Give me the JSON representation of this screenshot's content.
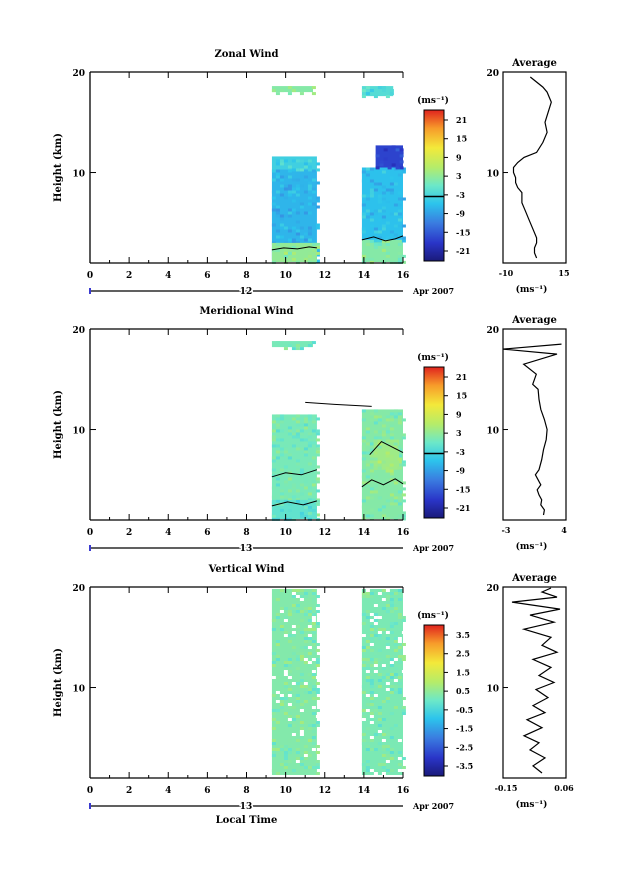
{
  "chart_data": [
    {
      "type": "heatmap",
      "title": "Zonal Wind",
      "ylabel": "Height (km)",
      "xlabel": "",
      "xlim": [
        0,
        16
      ],
      "ylim": [
        1,
        20
      ],
      "xticks": [
        "0",
        "2",
        "4",
        "6",
        "8",
        "10",
        "12",
        "14",
        "16"
      ],
      "yticks": [
        "10",
        "20"
      ],
      "date_label": "12",
      "date_suffix": "Apr 2007",
      "colorbar": {
        "unit": "(ms⁻¹)",
        "ticks": [
          "21",
          "15",
          "9",
          "3",
          "-3",
          "-9",
          "-15",
          "-21"
        ],
        "range": [
          -24,
          24
        ],
        "zero_line": true
      },
      "data_blocks": [
        {
          "t": [
            9.3,
            11.6
          ],
          "h": [
            1.1,
            10.3
          ],
          "value": -7
        },
        {
          "t": [
            9.3,
            11.6
          ],
          "h": [
            1.1,
            3.0
          ],
          "value": 3
        },
        {
          "t": [
            9.3,
            11.6
          ],
          "h": [
            10.3,
            11.6
          ],
          "value": -4
        },
        {
          "t": [
            13.9,
            16.0
          ],
          "h": [
            1.1,
            3.3
          ],
          "value": 2
        },
        {
          "t": [
            13.9,
            16.0
          ],
          "h": [
            3.3,
            10.5
          ],
          "value": -6
        },
        {
          "t": [
            14.6,
            16.0
          ],
          "h": [
            10.5,
            12.7
          ],
          "value": -17
        },
        {
          "t": [
            9.3,
            11.4
          ],
          "h": [
            18.0,
            18.6
          ],
          "value": 2
        },
        {
          "t": [
            13.9,
            15.5
          ],
          "h": [
            17.6,
            18.6
          ],
          "value": -2
        }
      ],
      "contours": [
        {
          "t": [
            9.3,
            9.9,
            10.6,
            11.2,
            11.6
          ],
          "h": [
            2.3,
            2.5,
            2.4,
            2.6,
            2.5
          ]
        },
        {
          "t": [
            13.9,
            14.5,
            15.1,
            15.6,
            16.0
          ],
          "h": [
            3.3,
            3.6,
            3.2,
            3.4,
            3.7
          ]
        }
      ],
      "profile": {
        "title": "Average",
        "xlabel": "(ms⁻¹)",
        "xlim": [
          -15,
          15
        ],
        "xticks": [
          "-10",
          "15"
        ],
        "yticks": [
          "10",
          "20"
        ],
        "wind": [
          1,
          0,
          0,
          1,
          1,
          0,
          -1,
          -2,
          -3,
          -4,
          -5,
          -6,
          -6,
          -6,
          -8,
          -9,
          -9,
          -10,
          -10,
          -8,
          -5,
          1,
          4,
          6,
          5,
          8,
          6,
          4,
          -2
        ],
        "height": [
          1.5,
          2.0,
          2.5,
          3.0,
          3.5,
          4.0,
          4.5,
          5.0,
          5.5,
          6.0,
          6.5,
          7.0,
          7.5,
          8.0,
          8.5,
          9.0,
          9.5,
          10.0,
          10.5,
          11.0,
          11.5,
          12.0,
          13.0,
          14.0,
          15.0,
          17.0,
          18.0,
          18.5,
          19.5
        ]
      }
    },
    {
      "type": "heatmap",
      "title": "Meridional Wind",
      "ylabel": "Height (km)",
      "xlabel": "",
      "xlim": [
        0,
        16
      ],
      "ylim": [
        1,
        20
      ],
      "xticks": [
        "0",
        "2",
        "4",
        "6",
        "8",
        "10",
        "12",
        "14",
        "16"
      ],
      "yticks": [
        "10",
        "20"
      ],
      "date_label": "13",
      "date_suffix": "Apr 2007",
      "colorbar": {
        "unit": "(ms⁻¹)",
        "ticks": [
          "21",
          "15",
          "9",
          "3",
          "-3",
          "-9",
          "-15",
          "-21"
        ],
        "range": [
          -24,
          24
        ],
        "zero_line": true
      },
      "data_blocks": [
        {
          "t": [
            9.3,
            11.6
          ],
          "h": [
            1.1,
            11.5
          ],
          "value": 1
        },
        {
          "t": [
            9.3,
            11.6
          ],
          "h": [
            1.1,
            3.0
          ],
          "value": -1
        },
        {
          "t": [
            13.9,
            16.0
          ],
          "h": [
            1.1,
            12.0
          ],
          "value": 2
        },
        {
          "t": [
            14.5,
            15.8
          ],
          "h": [
            6.0,
            9.0
          ],
          "value": 4
        },
        {
          "t": [
            9.3,
            11.4
          ],
          "h": [
            18.2,
            18.8
          ],
          "value": 1
        }
      ],
      "contours": [
        {
          "t": [
            9.3,
            10.0,
            10.8,
            11.6
          ],
          "h": [
            5.3,
            5.7,
            5.5,
            6.0
          ]
        },
        {
          "t": [
            9.3,
            10.1,
            10.9,
            11.6
          ],
          "h": [
            2.4,
            2.8,
            2.5,
            2.9
          ]
        },
        {
          "t": [
            13.9,
            14.4,
            15.0,
            15.6,
            16.0
          ],
          "h": [
            4.3,
            5.0,
            4.5,
            5.1,
            4.6
          ]
        },
        {
          "t": [
            14.3,
            14.9,
            15.5,
            16.0
          ],
          "h": [
            7.5,
            8.8,
            8.2,
            7.7
          ]
        },
        {
          "t": [
            11.0,
            12.5,
            14.4
          ],
          "h": [
            12.7,
            12.5,
            12.3
          ]
        }
      ],
      "profile": {
        "title": "Average",
        "xlabel": "(ms⁻¹)",
        "xlim": [
          -3,
          4
        ],
        "xticks": [
          "-3",
          "4"
        ],
        "yticks": [
          "10",
          "20"
        ],
        "wind": [
          1.5,
          1.6,
          1.2,
          1.3,
          1.0,
          0.8,
          1.2,
          0.9,
          0.6,
          1.0,
          1.3,
          1.5,
          1.8,
          1.9,
          1.6,
          1.2,
          1.0,
          0.9,
          0.3,
          0.5,
          0.7,
          -0.7,
          3.0,
          -3.0,
          3.5
        ],
        "height": [
          1.5,
          2.0,
          2.5,
          3.0,
          3.5,
          4.0,
          4.5,
          5.0,
          5.5,
          6.0,
          7.0,
          8.0,
          9.0,
          10.0,
          11.0,
          12.0,
          13.0,
          14.0,
          14.5,
          15.0,
          15.5,
          16.5,
          17.5,
          18.0,
          18.5
        ]
      }
    },
    {
      "type": "heatmap",
      "title": "Vertical Wind",
      "ylabel": "Height (km)",
      "xlabel": "Local Time",
      "xlim": [
        0,
        16
      ],
      "ylim": [
        1,
        20
      ],
      "xticks": [
        "0",
        "2",
        "4",
        "6",
        "8",
        "10",
        "12",
        "14",
        "16"
      ],
      "yticks": [
        "10",
        "20"
      ],
      "date_label": "13",
      "date_suffix": "Apr 2007",
      "colorbar": {
        "unit": "(ms⁻¹)",
        "ticks": [
          "3.5",
          "2.5",
          "1.5",
          "0.5",
          "-0.5",
          "-1.5",
          "-2.5",
          "-3.5"
        ],
        "range": [
          -4,
          4
        ],
        "zero_line": false
      },
      "data_blocks": [
        {
          "t": [
            9.3,
            11.6
          ],
          "h": [
            1.3,
            19.8
          ],
          "value": 0.3
        },
        {
          "t": [
            13.9,
            16.0
          ],
          "h": [
            1.3,
            19.8
          ],
          "value": 0.2
        }
      ],
      "contours": [],
      "profile": {
        "title": "Average",
        "xlabel": "(ms⁻¹)",
        "xlim": [
          -0.15,
          0.06
        ],
        "xticks": [
          "-0.15",
          "0.06"
        ],
        "yticks": [
          "10",
          "20"
        ],
        "wind": [
          -0.02,
          -0.05,
          -0.01,
          -0.06,
          -0.03,
          -0.08,
          -0.02,
          -0.07,
          -0.01,
          -0.05,
          0.0,
          -0.04,
          0.02,
          -0.03,
          0.01,
          -0.05,
          0.03,
          -0.02,
          0.01,
          -0.08,
          0.02,
          -0.06,
          0.04,
          -0.12,
          0.03,
          -0.02,
          0.01
        ],
        "height": [
          1.5,
          2.2,
          3.0,
          3.8,
          4.5,
          5.2,
          6.0,
          6.8,
          7.5,
          8.2,
          9.0,
          9.8,
          10.5,
          11.2,
          12.0,
          12.8,
          13.5,
          14.2,
          15.0,
          15.8,
          16.5,
          17.2,
          17.8,
          18.5,
          19.0,
          19.5,
          19.9
        ]
      }
    }
  ]
}
